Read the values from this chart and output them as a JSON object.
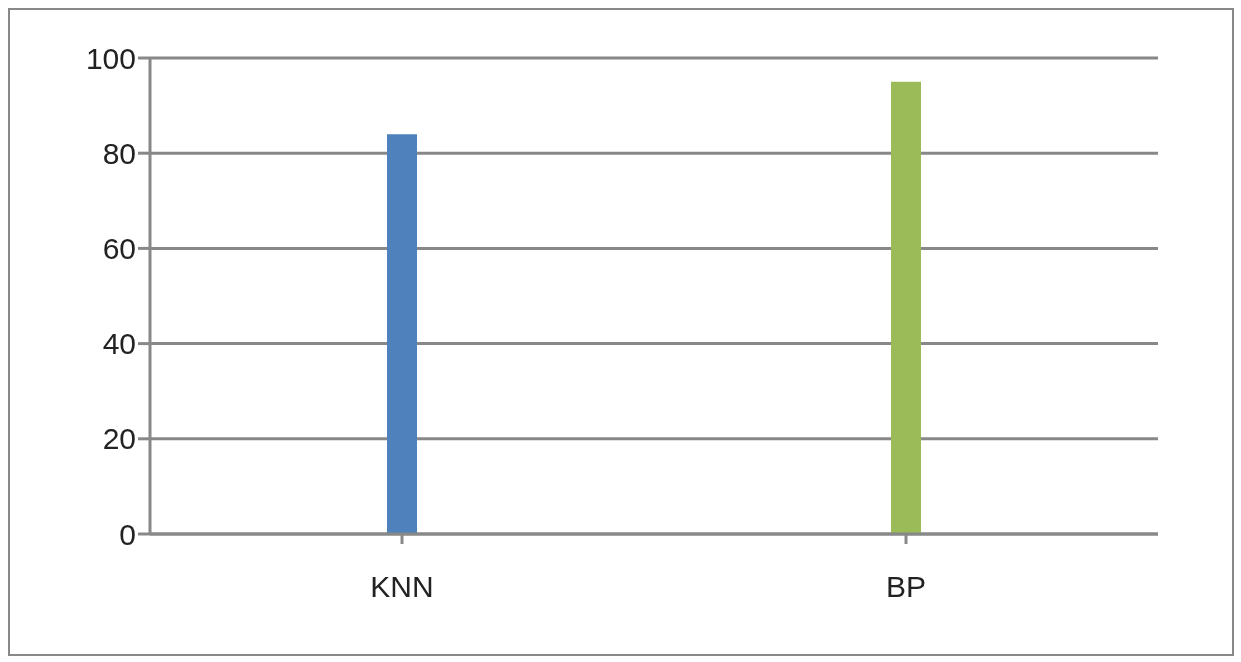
{
  "chart_data": {
    "type": "bar",
    "categories": [
      "KNN",
      "BP"
    ],
    "values": [
      84,
      95
    ],
    "colors": [
      "#4f81bd",
      "#9bbb59"
    ],
    "ylim": [
      0,
      100
    ],
    "yticks": [
      0,
      20,
      40,
      60,
      80,
      100
    ],
    "grid": "y"
  }
}
